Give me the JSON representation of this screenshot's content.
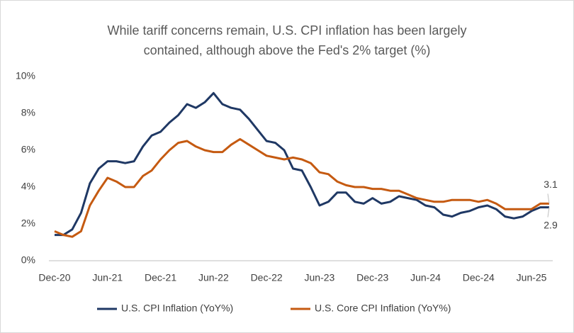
{
  "chart_data": {
    "type": "line",
    "title": [
      "While tariff concerns remain, U.S. CPI inflation has been largely",
      "contained, although above the Fed's 2% target (%)"
    ],
    "categories": [
      "Dec-20",
      null,
      null,
      null,
      null,
      null,
      "Jun-21",
      null,
      null,
      null,
      null,
      null,
      "Dec-21",
      null,
      null,
      null,
      null,
      null,
      "Jun-22",
      null,
      null,
      null,
      null,
      null,
      "Dec-22",
      null,
      null,
      null,
      null,
      null,
      "Jun-23",
      null,
      null,
      null,
      null,
      null,
      "Dec-23",
      null,
      null,
      null,
      null,
      null,
      "Jun-24",
      null,
      null,
      null,
      null,
      null,
      "Dec-24",
      null,
      null,
      null,
      null,
      null,
      "Jun-25",
      null,
      null
    ],
    "series": [
      {
        "name": "U.S. CPI Inflation (YoY%)",
        "color": "#1f3864",
        "values": [
          1.4,
          1.4,
          1.7,
          2.6,
          4.2,
          5.0,
          5.4,
          5.4,
          5.3,
          5.4,
          6.2,
          6.8,
          7.0,
          7.5,
          7.9,
          8.5,
          8.3,
          8.6,
          9.1,
          8.5,
          8.3,
          8.2,
          7.7,
          7.1,
          6.5,
          6.4,
          6.0,
          5.0,
          4.9,
          4.0,
          3.0,
          3.2,
          3.7,
          3.7,
          3.2,
          3.1,
          3.4,
          3.1,
          3.2,
          3.5,
          3.4,
          3.3,
          3.0,
          2.9,
          2.5,
          2.4,
          2.6,
          2.7,
          2.9,
          3.0,
          2.8,
          2.4,
          2.3,
          2.4,
          2.7,
          2.9,
          2.9
        ]
      },
      {
        "name": "U.S. Core CPI Inflation (YoY%)",
        "color": "#c55a11",
        "values": [
          1.6,
          1.4,
          1.3,
          1.6,
          3.0,
          3.8,
          4.5,
          4.3,
          4.0,
          4.0,
          4.6,
          4.9,
          5.5,
          6.0,
          6.4,
          6.5,
          6.2,
          6.0,
          5.9,
          5.9,
          6.3,
          6.6,
          6.3,
          6.0,
          5.7,
          5.6,
          5.5,
          5.6,
          5.5,
          5.3,
          4.8,
          4.7,
          4.3,
          4.1,
          4.0,
          4.0,
          3.9,
          3.9,
          3.8,
          3.8,
          3.6,
          3.4,
          3.3,
          3.2,
          3.2,
          3.3,
          3.3,
          3.3,
          3.2,
          3.3,
          3.1,
          2.8,
          2.8,
          2.8,
          2.8,
          3.1,
          3.1
        ]
      }
    ],
    "ylim": [
      0,
      10
    ],
    "yticks": [
      {
        "value": 0,
        "label": "0%"
      },
      {
        "value": 2,
        "label": "2%"
      },
      {
        "value": 4,
        "label": "4%"
      },
      {
        "value": 6,
        "label": "6%"
      },
      {
        "value": 8,
        "label": "8%"
      },
      {
        "value": 10,
        "label": "10%"
      }
    ],
    "grid": false,
    "legend": "bottom"
  }
}
